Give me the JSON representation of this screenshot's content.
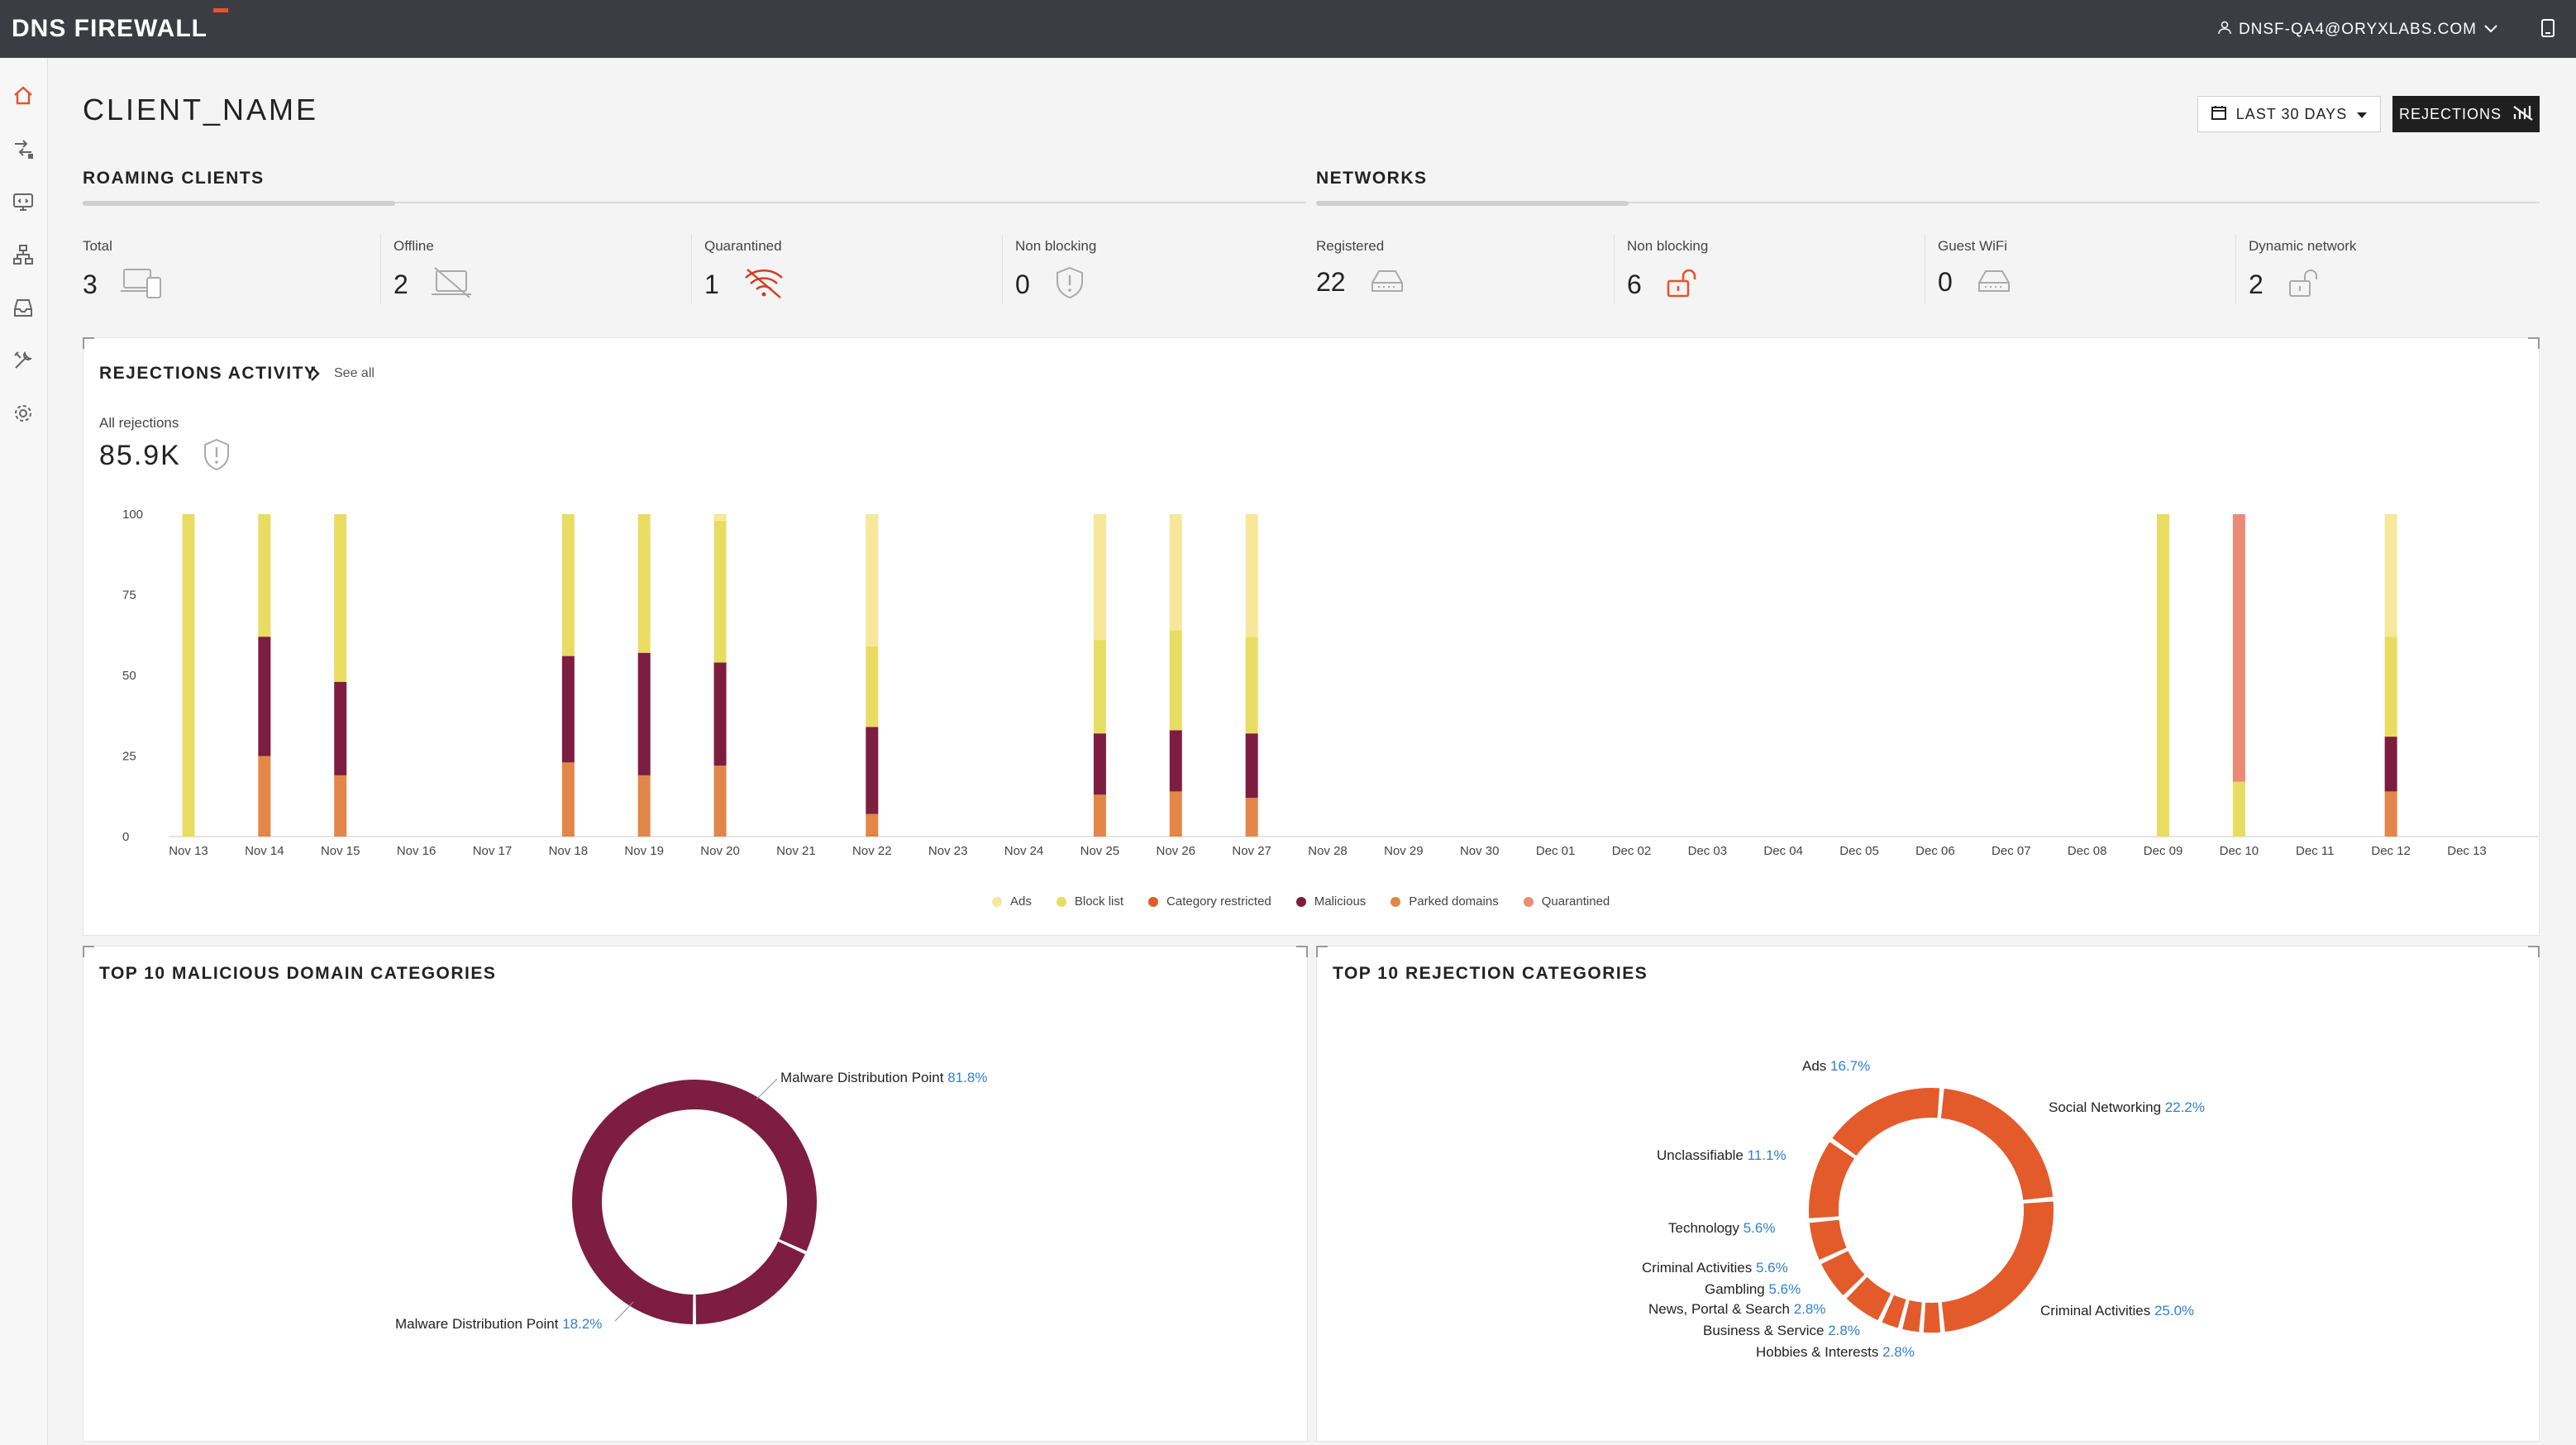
{
  "app": {
    "logo_text": "DNS FIREWALL",
    "user": "DNSF-QA4@ORYXLABS.COM"
  },
  "page": {
    "title": "CLIENT_NAME",
    "date_range": "LAST 30 DAYS",
    "rejections_button": "REJECTIONS"
  },
  "sidebar": {
    "items": [
      {
        "icon": "home-icon",
        "active": true
      },
      {
        "icon": "traffic-icon"
      },
      {
        "icon": "monitor-icon"
      },
      {
        "icon": "network-icon"
      },
      {
        "icon": "inbox-icon"
      },
      {
        "icon": "tools-icon"
      },
      {
        "icon": "settings-icon"
      }
    ]
  },
  "roaming": {
    "title": "ROAMING CLIENTS",
    "stats": [
      {
        "label": "Total",
        "value": "3",
        "icon": "devices-icon"
      },
      {
        "label": "Offline",
        "value": "2",
        "icon": "laptop-offline-icon"
      },
      {
        "label": "Quarantined",
        "value": "1",
        "icon": "wifi-off-icon"
      },
      {
        "label": "Non blocking",
        "value": "0",
        "icon": "shield-alert-icon"
      }
    ]
  },
  "networks": {
    "title": "NETWORKS",
    "stats": [
      {
        "label": "Registered",
        "value": "22",
        "icon": "router-icon"
      },
      {
        "label": "Non blocking",
        "value": "6",
        "icon": "unlocked-icon"
      },
      {
        "label": "Guest WiFi",
        "value": "0",
        "icon": "router-icon"
      },
      {
        "label": "Dynamic network",
        "value": "2",
        "icon": "unlocked-icon"
      }
    ]
  },
  "activity": {
    "title": "REJECTIONS ACTIVITY",
    "see_all": "See all",
    "all_label": "All rejections",
    "all_value": "85.9K"
  },
  "colors": {
    "ads": "#f7e79a",
    "block_list": "#e8dc63",
    "category_restricted": "#e35b2b",
    "malicious": "#7d1d3f",
    "parked_domains": "#e2864a",
    "quarantined": "#ec8a78",
    "accent": "#e8532b"
  },
  "chart_data": [
    {
      "type": "bar",
      "stacked": true,
      "categories": [
        "Nov 13",
        "Nov 14",
        "Nov 15",
        "Nov 16",
        "Nov 17",
        "Nov 18",
        "Nov 19",
        "Nov 20",
        "Nov 21",
        "Nov 22",
        "Nov 23",
        "Nov 24",
        "Nov 25",
        "Nov 26",
        "Nov 27",
        "Nov 28",
        "Nov 29",
        "Nov 30",
        "Dec 01",
        "Dec 02",
        "Dec 03",
        "Dec 04",
        "Dec 05",
        "Dec 06",
        "Dec 07",
        "Dec 08",
        "Dec 09",
        "Dec 10",
        "Dec 11",
        "Dec 12",
        "Dec 13"
      ],
      "ylim": [
        0,
        100
      ],
      "yticks": [
        0,
        25,
        50,
        75,
        100
      ],
      "series": [
        {
          "name": "Parked domains",
          "color_key": "parked_domains",
          "values": [
            0,
            25,
            19,
            0,
            0,
            23,
            19,
            22,
            0,
            7,
            0,
            0,
            13,
            14,
            12,
            0,
            0,
            0,
            0,
            0,
            0,
            0,
            0,
            0,
            0,
            0,
            0,
            0,
            0,
            14,
            0
          ]
        },
        {
          "name": "Malicious",
          "color_key": "malicious",
          "values": [
            0,
            37,
            29,
            0,
            0,
            33,
            38,
            32,
            0,
            27,
            0,
            0,
            19,
            19,
            20,
            0,
            0,
            0,
            0,
            0,
            0,
            0,
            0,
            0,
            0,
            0,
            0,
            0,
            0,
            17,
            0
          ]
        },
        {
          "name": "Category restricted",
          "color_key": "category_restricted",
          "values": [
            0,
            0,
            0,
            0,
            0,
            0,
            0,
            0,
            0,
            0,
            0,
            0,
            0,
            0,
            0,
            0,
            0,
            0,
            0,
            0,
            0,
            0,
            0,
            0,
            0,
            0,
            0,
            0,
            0,
            0,
            0
          ]
        },
        {
          "name": "Block list",
          "color_key": "block_list",
          "values": [
            100,
            38,
            52,
            0,
            0,
            44,
            43,
            44,
            0,
            25,
            0,
            0,
            29,
            31,
            30,
            0,
            0,
            0,
            0,
            0,
            0,
            0,
            0,
            0,
            0,
            0,
            100,
            17,
            0,
            31,
            0
          ]
        },
        {
          "name": "Ads",
          "color_key": "ads",
          "values": [
            0,
            0,
            0,
            0,
            0,
            0,
            0,
            2,
            0,
            41,
            0,
            0,
            39,
            36,
            38,
            0,
            0,
            0,
            0,
            0,
            0,
            0,
            0,
            0,
            0,
            0,
            0,
            0,
            0,
            38,
            0
          ]
        },
        {
          "name": "Quarantined",
          "color_key": "quarantined",
          "values": [
            0,
            0,
            0,
            0,
            0,
            0,
            0,
            0,
            0,
            0,
            0,
            0,
            0,
            0,
            0,
            0,
            0,
            0,
            0,
            0,
            0,
            0,
            0,
            0,
            0,
            0,
            0,
            83,
            0,
            0,
            0
          ]
        }
      ],
      "legend": [
        "Ads",
        "Block list",
        "Category restricted",
        "Malicious",
        "Parked domains",
        "Quarantined"
      ],
      "legend_placement": "bottom"
    },
    {
      "type": "pie",
      "donut": true,
      "title": "TOP 10 MALICIOUS DOMAIN CATEGORIES",
      "slices": [
        {
          "label": "Malware Distribution Point",
          "value": 81.8,
          "pct": "81.8%"
        },
        {
          "label": "Malware Distribution Point",
          "value": 18.2,
          "pct": "18.2%"
        }
      ],
      "color": "#7d1d3f"
    },
    {
      "type": "pie",
      "donut": true,
      "title": "TOP 10 REJECTION CATEGORIES",
      "slices": [
        {
          "label": "Social Networking",
          "value": 22.2,
          "pct": "22.2%"
        },
        {
          "label": "Criminal Activities",
          "value": 25.0,
          "pct": "25.0%"
        },
        {
          "label": "Hobbies & Interests",
          "value": 2.8,
          "pct": "2.8%"
        },
        {
          "label": "Business & Service",
          "value": 2.8,
          "pct": "2.8%"
        },
        {
          "label": "News, Portal & Search",
          "value": 2.8,
          "pct": "2.8%"
        },
        {
          "label": "Gambling",
          "value": 5.6,
          "pct": "5.6%"
        },
        {
          "label": "Criminal Activities",
          "value": 5.6,
          "pct": "5.6%"
        },
        {
          "label": "Technology",
          "value": 5.6,
          "pct": "5.6%"
        },
        {
          "label": "Unclassifiable",
          "value": 11.1,
          "pct": "11.1%"
        },
        {
          "label": "Ads",
          "value": 16.7,
          "pct": "16.7%"
        }
      ],
      "color": "#e35b2b"
    }
  ]
}
